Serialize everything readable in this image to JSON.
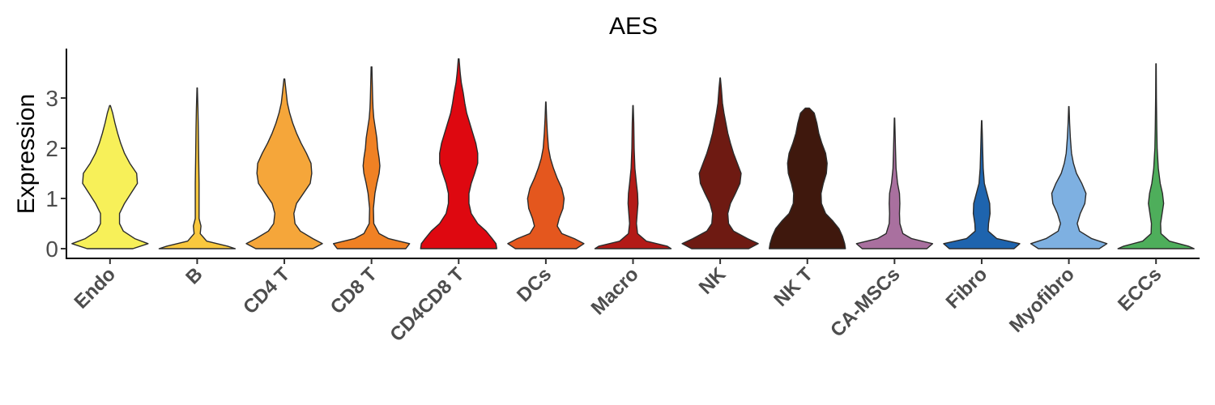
{
  "chart_data": {
    "type": "violin",
    "title": "AES",
    "xlabel": "",
    "ylabel": "Expression",
    "ylim": [
      -0.2,
      3.95
    ],
    "yticks": [
      0,
      1,
      2,
      3
    ],
    "grid": false,
    "legend": "none",
    "categories": [
      "Endo",
      "B",
      "CD4 T",
      "CD8 T",
      "CD4CD8 T",
      "DCs",
      "Macro",
      "NK",
      "NK T",
      "CA-MSCs",
      "Fibro",
      "Myofibro",
      "ECCs"
    ],
    "colors": [
      "#F7F059",
      "#F9C83E",
      "#F5A63A",
      "#F08124",
      "#DE0810",
      "#E4571E",
      "#B31A17",
      "#6E1A12",
      "#3F180D",
      "#A9709F",
      "#1E64AE",
      "#7EB0E1",
      "#4EAE5B"
    ],
    "max_values": [
      2.85,
      3.2,
      3.38,
      3.62,
      3.78,
      2.92,
      2.85,
      3.4,
      2.8,
      2.6,
      2.55,
      2.83,
      3.68
    ],
    "densities": [
      [
        [
          0,
          0.6
        ],
        [
          0.1,
          1.0
        ],
        [
          0.2,
          0.65
        ],
        [
          0.35,
          0.35
        ],
        [
          0.5,
          0.25
        ],
        [
          0.7,
          0.25
        ],
        [
          0.9,
          0.38
        ],
        [
          1.1,
          0.55
        ],
        [
          1.3,
          0.72
        ],
        [
          1.5,
          0.7
        ],
        [
          1.7,
          0.52
        ],
        [
          1.9,
          0.38
        ],
        [
          2.1,
          0.28
        ],
        [
          2.3,
          0.2
        ],
        [
          2.5,
          0.13
        ],
        [
          2.7,
          0.07
        ],
        [
          2.85,
          0.01
        ]
      ],
      [
        [
          0,
          1.0
        ],
        [
          0.05,
          0.8
        ],
        [
          0.15,
          0.25
        ],
        [
          0.3,
          0.08
        ],
        [
          0.45,
          0.1
        ],
        [
          0.6,
          0.05
        ],
        [
          0.9,
          0.05
        ],
        [
          1.3,
          0.05
        ],
        [
          1.8,
          0.04
        ],
        [
          2.4,
          0.03
        ],
        [
          2.8,
          0.02
        ],
        [
          3.2,
          0.005
        ]
      ],
      [
        [
          0,
          0.75
        ],
        [
          0.1,
          1.0
        ],
        [
          0.2,
          0.75
        ],
        [
          0.35,
          0.42
        ],
        [
          0.5,
          0.28
        ],
        [
          0.7,
          0.25
        ],
        [
          0.9,
          0.32
        ],
        [
          1.1,
          0.5
        ],
        [
          1.3,
          0.68
        ],
        [
          1.5,
          0.72
        ],
        [
          1.7,
          0.7
        ],
        [
          1.9,
          0.58
        ],
        [
          2.1,
          0.44
        ],
        [
          2.3,
          0.32
        ],
        [
          2.5,
          0.22
        ],
        [
          2.7,
          0.14
        ],
        [
          2.9,
          0.08
        ],
        [
          3.1,
          0.05
        ],
        [
          3.38,
          0.01
        ]
      ],
      [
        [
          0,
          0.9
        ],
        [
          0.1,
          1.0
        ],
        [
          0.2,
          0.45
        ],
        [
          0.3,
          0.2
        ],
        [
          0.5,
          0.06
        ],
        [
          0.8,
          0.05
        ],
        [
          1.1,
          0.09
        ],
        [
          1.3,
          0.14
        ],
        [
          1.5,
          0.2
        ],
        [
          1.65,
          0.22
        ],
        [
          1.8,
          0.2
        ],
        [
          2.0,
          0.16
        ],
        [
          2.2,
          0.14
        ],
        [
          2.4,
          0.1
        ],
        [
          2.6,
          0.06
        ],
        [
          2.8,
          0.04
        ],
        [
          3.0,
          0.03
        ],
        [
          3.3,
          0.02
        ],
        [
          3.62,
          0.01
        ]
      ],
      [
        [
          0,
          1.0
        ],
        [
          0.1,
          0.98
        ],
        [
          0.2,
          0.88
        ],
        [
          0.35,
          0.72
        ],
        [
          0.5,
          0.5
        ],
        [
          0.7,
          0.33
        ],
        [
          0.9,
          0.27
        ],
        [
          1.1,
          0.27
        ],
        [
          1.3,
          0.33
        ],
        [
          1.5,
          0.42
        ],
        [
          1.7,
          0.5
        ],
        [
          1.9,
          0.5
        ],
        [
          2.1,
          0.45
        ],
        [
          2.3,
          0.37
        ],
        [
          2.5,
          0.29
        ],
        [
          2.7,
          0.21
        ],
        [
          2.9,
          0.16
        ],
        [
          3.1,
          0.12
        ],
        [
          3.3,
          0.07
        ],
        [
          3.5,
          0.04
        ],
        [
          3.78,
          0.01
        ]
      ],
      [
        [
          0,
          0.8
        ],
        [
          0.1,
          1.0
        ],
        [
          0.2,
          0.75
        ],
        [
          0.3,
          0.42
        ],
        [
          0.45,
          0.3
        ],
        [
          0.6,
          0.35
        ],
        [
          0.8,
          0.45
        ],
        [
          1.0,
          0.48
        ],
        [
          1.2,
          0.42
        ],
        [
          1.4,
          0.3
        ],
        [
          1.6,
          0.2
        ],
        [
          1.8,
          0.12
        ],
        [
          2.0,
          0.07
        ],
        [
          2.3,
          0.04
        ],
        [
          2.6,
          0.02
        ],
        [
          2.92,
          0.005
        ]
      ],
      [
        [
          0,
          1.0
        ],
        [
          0.05,
          0.9
        ],
        [
          0.15,
          0.35
        ],
        [
          0.3,
          0.12
        ],
        [
          0.5,
          0.09
        ],
        [
          0.7,
          0.11
        ],
        [
          0.9,
          0.13
        ],
        [
          1.1,
          0.12
        ],
        [
          1.3,
          0.09
        ],
        [
          1.6,
          0.05
        ],
        [
          2.0,
          0.03
        ],
        [
          2.5,
          0.02
        ],
        [
          2.85,
          0.005
        ]
      ],
      [
        [
          0,
          0.75
        ],
        [
          0.1,
          1.0
        ],
        [
          0.2,
          0.72
        ],
        [
          0.35,
          0.35
        ],
        [
          0.5,
          0.22
        ],
        [
          0.7,
          0.2
        ],
        [
          0.9,
          0.27
        ],
        [
          1.1,
          0.4
        ],
        [
          1.3,
          0.52
        ],
        [
          1.5,
          0.55
        ],
        [
          1.7,
          0.45
        ],
        [
          1.9,
          0.35
        ],
        [
          2.1,
          0.27
        ],
        [
          2.3,
          0.2
        ],
        [
          2.5,
          0.15
        ],
        [
          2.7,
          0.1
        ],
        [
          2.9,
          0.06
        ],
        [
          3.2,
          0.03
        ],
        [
          3.4,
          0.005
        ]
      ],
      [
        [
          0,
          1.0
        ],
        [
          0.1,
          0.98
        ],
        [
          0.25,
          0.92
        ],
        [
          0.4,
          0.83
        ],
        [
          0.55,
          0.67
        ],
        [
          0.7,
          0.48
        ],
        [
          0.9,
          0.37
        ],
        [
          1.1,
          0.36
        ],
        [
          1.3,
          0.42
        ],
        [
          1.5,
          0.5
        ],
        [
          1.7,
          0.52
        ],
        [
          1.9,
          0.48
        ],
        [
          2.1,
          0.38
        ],
        [
          2.3,
          0.3
        ],
        [
          2.5,
          0.25
        ],
        [
          2.7,
          0.18
        ],
        [
          2.8,
          0.05
        ]
      ],
      [
        [
          0,
          0.85
        ],
        [
          0.1,
          1.0
        ],
        [
          0.2,
          0.45
        ],
        [
          0.3,
          0.22
        ],
        [
          0.5,
          0.14
        ],
        [
          0.7,
          0.13
        ],
        [
          0.9,
          0.14
        ],
        [
          1.1,
          0.13
        ],
        [
          1.3,
          0.08
        ],
        [
          1.6,
          0.04
        ],
        [
          2.0,
          0.025
        ],
        [
          2.3,
          0.015
        ],
        [
          2.6,
          0.005
        ]
      ],
      [
        [
          0,
          0.85
        ],
        [
          0.1,
          1.0
        ],
        [
          0.2,
          0.4
        ],
        [
          0.35,
          0.17
        ],
        [
          0.5,
          0.18
        ],
        [
          0.7,
          0.22
        ],
        [
          0.9,
          0.21
        ],
        [
          1.1,
          0.14
        ],
        [
          1.3,
          0.07
        ],
        [
          1.6,
          0.04
        ],
        [
          2.0,
          0.025
        ],
        [
          2.3,
          0.015
        ],
        [
          2.55,
          0.005
        ]
      ],
      [
        [
          0,
          0.8
        ],
        [
          0.1,
          1.0
        ],
        [
          0.2,
          0.6
        ],
        [
          0.35,
          0.28
        ],
        [
          0.5,
          0.22
        ],
        [
          0.7,
          0.3
        ],
        [
          0.9,
          0.42
        ],
        [
          1.1,
          0.45
        ],
        [
          1.3,
          0.34
        ],
        [
          1.5,
          0.2
        ],
        [
          1.7,
          0.12
        ],
        [
          1.9,
          0.07
        ],
        [
          2.2,
          0.04
        ],
        [
          2.5,
          0.02
        ],
        [
          2.83,
          0.005
        ]
      ],
      [
        [
          0,
          1.0
        ],
        [
          0.05,
          0.85
        ],
        [
          0.15,
          0.35
        ],
        [
          0.3,
          0.13
        ],
        [
          0.5,
          0.12
        ],
        [
          0.7,
          0.16
        ],
        [
          0.9,
          0.2
        ],
        [
          1.1,
          0.17
        ],
        [
          1.3,
          0.11
        ],
        [
          1.6,
          0.06
        ],
        [
          2.0,
          0.03
        ],
        [
          2.4,
          0.02
        ],
        [
          3.0,
          0.01
        ],
        [
          3.68,
          0.005
        ]
      ]
    ]
  }
}
